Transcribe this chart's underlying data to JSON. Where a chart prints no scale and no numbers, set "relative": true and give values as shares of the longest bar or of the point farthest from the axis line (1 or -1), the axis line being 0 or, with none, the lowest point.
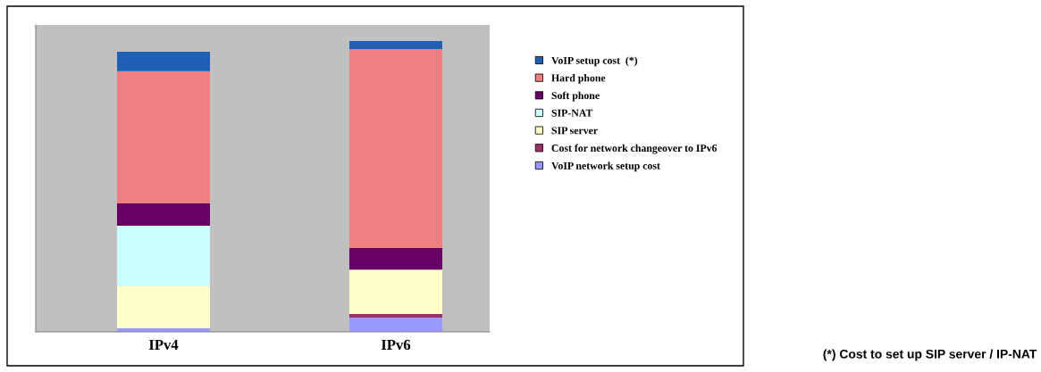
{
  "chart_data": {
    "type": "bar",
    "stacked": true,
    "relative": true,
    "categories": [
      "IPv4",
      "IPv6"
    ],
    "series": [
      {
        "name": "VoIP network setup cost",
        "color": "#9999ff",
        "values": [
          0.012,
          0.049
        ]
      },
      {
        "name": "Cost for network changeover to IPv6",
        "color": "#993366",
        "values": [
          0,
          0.012
        ]
      },
      {
        "name": "SIP server",
        "color": "#ffffcc",
        "values": [
          0.147,
          0.153
        ]
      },
      {
        "name": "SIP-NAT",
        "color": "#ccffff",
        "values": [
          0.206,
          0
        ]
      },
      {
        "name": "Soft phone",
        "color": "#660066",
        "values": [
          0.077,
          0.074
        ]
      },
      {
        "name": "Hard phone",
        "color": "#f08080",
        "values": [
          0.454,
          0.684
        ]
      },
      {
        "name": "VoIP setup cost  (*)",
        "color": "#1f5fb4",
        "values": [
          0.067,
          0.028
        ]
      }
    ],
    "legend": "right",
    "annotations": [
      "(*) Cost to set up SIP server / IP-NAT"
    ]
  }
}
